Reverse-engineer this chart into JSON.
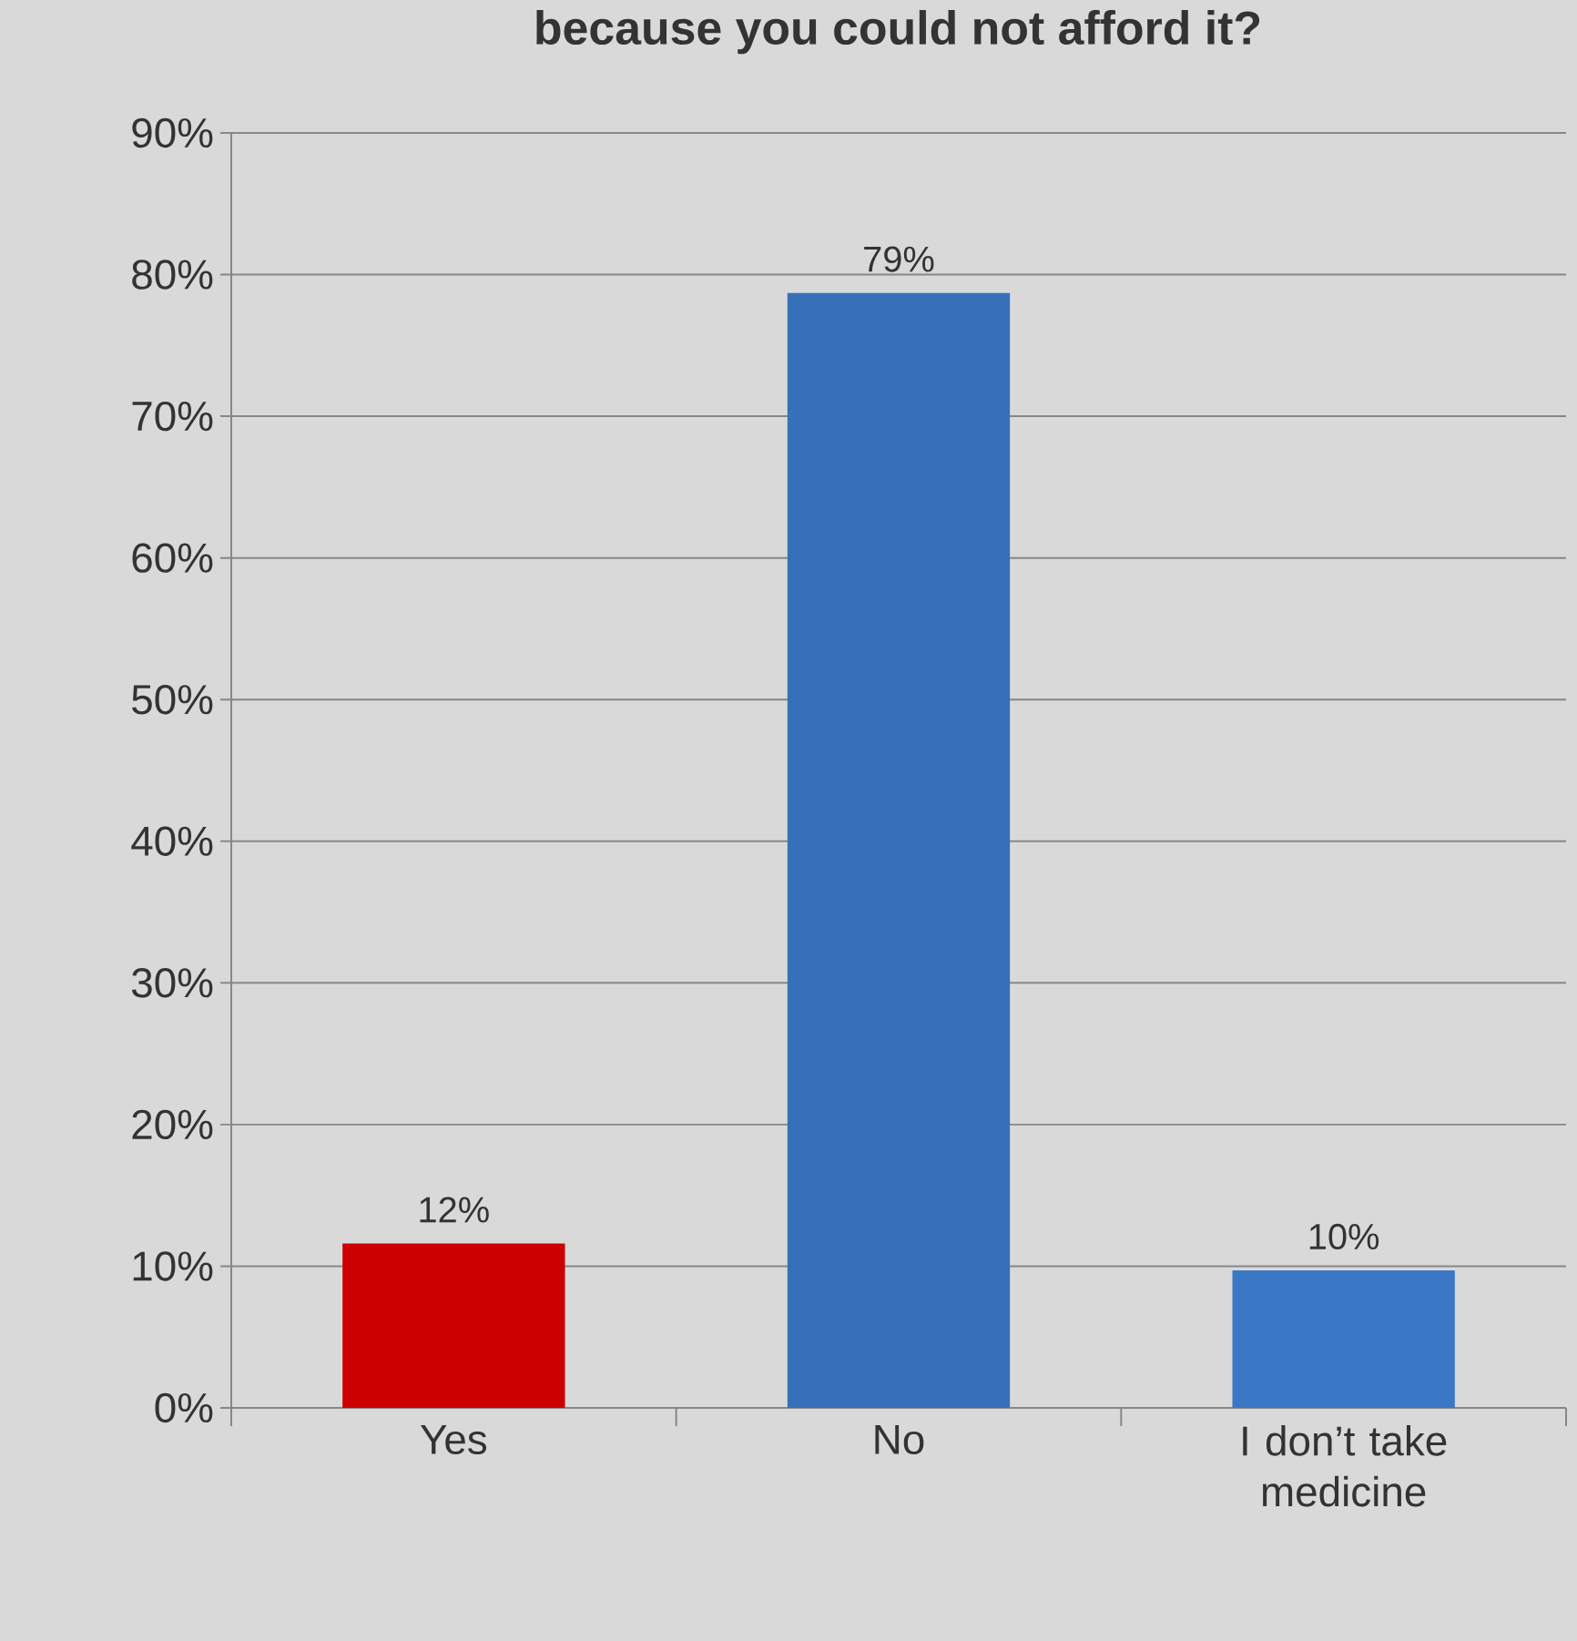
{
  "chart_data": {
    "type": "bar",
    "title": "because you could not afford it?",
    "categories": [
      "Yes",
      "No",
      "I don’t take medicine"
    ],
    "values": [
      11.6,
      78.7,
      9.7
    ],
    "value_labels": [
      "12%",
      "79%",
      "10%"
    ],
    "colors": [
      "#cc0000",
      "#3670b8",
      "#3a78c6"
    ],
    "ylim": [
      0,
      90
    ],
    "yticks": [
      {
        "value": 0,
        "label": "0%"
      },
      {
        "value": 10,
        "label": "10%"
      },
      {
        "value": 20,
        "label": "20%"
      },
      {
        "value": 30,
        "label": "30%"
      },
      {
        "value": 40,
        "label": "40%"
      },
      {
        "value": 50,
        "label": "50%"
      },
      {
        "value": 60,
        "label": "60%"
      },
      {
        "value": 70,
        "label": "70%"
      },
      {
        "value": 80,
        "label": "80%"
      },
      {
        "value": 90,
        "label": "90%"
      }
    ],
    "grid": "y"
  }
}
